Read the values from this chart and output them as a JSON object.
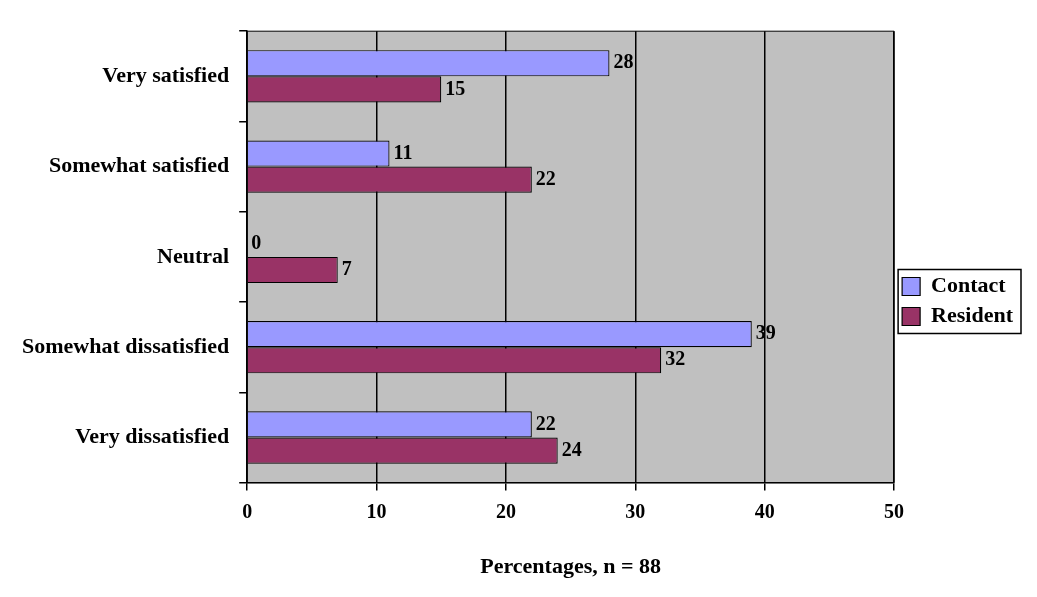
{
  "chart_data": {
    "type": "bar",
    "orientation": "horizontal",
    "xlabel": "Percentages, n = 88",
    "categories": [
      "Very satisfied",
      "Somewhat satisfied",
      "Neutral",
      "Somewhat dissatisfied",
      "Very dissatisfied"
    ],
    "series": [
      {
        "name": "Contact",
        "color": "#9999ff",
        "values": [
          28,
          11,
          0,
          39,
          22
        ]
      },
      {
        "name": "Resident",
        "color": "#993366",
        "values": [
          15,
          22,
          7,
          32,
          24
        ]
      }
    ],
    "xlim": [
      0,
      50
    ],
    "xticks": [
      0,
      10,
      20,
      30,
      40,
      50
    ],
    "grid": "x",
    "legend": "right",
    "data_labels": true
  }
}
